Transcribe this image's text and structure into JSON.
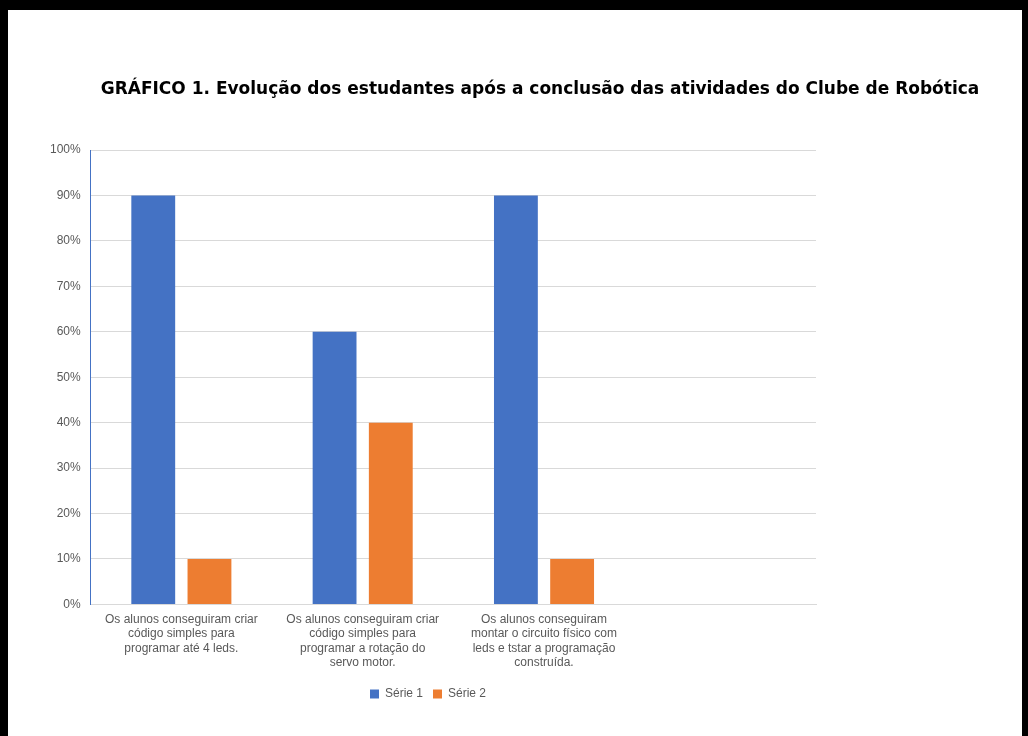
{
  "chart_data": {
    "type": "bar",
    "title": "GRÁFICO 1. Evolução dos estudantes após a conclusão das atividades do Clube de Robótica",
    "categories": [
      "Os alunos conseguiram criar código simples para programar até 4 leds.",
      "Os alunos conseguiram criar código simples para programar a rotação do servo motor.",
      "Os alunos conseguiram montar o circuito físico com leds e tstar a programação construída.",
      null
    ],
    "series": [
      {
        "name": "Série 1",
        "color": "#4472c4",
        "values": [
          90,
          60,
          90,
          null
        ]
      },
      {
        "name": "Série 2",
        "color": "#ed7d31",
        "values": [
          10,
          40,
          10,
          null
        ]
      }
    ],
    "ylim": [
      0,
      100
    ],
    "yticks": [
      {
        "value": 0,
        "label": "0%"
      },
      {
        "value": 10,
        "label": "10%"
      },
      {
        "value": 20,
        "label": "20%"
      },
      {
        "value": 30,
        "label": "30%"
      },
      {
        "value": 40,
        "label": "40%"
      },
      {
        "value": 50,
        "label": "50%"
      },
      {
        "value": 60,
        "label": "60%"
      },
      {
        "value": 70,
        "label": "70%"
      },
      {
        "value": 80,
        "label": "80%"
      },
      {
        "value": 90,
        "label": "90%"
      },
      {
        "value": 100,
        "label": "100%"
      }
    ],
    "grid": "y",
    "legend": "bottom"
  }
}
